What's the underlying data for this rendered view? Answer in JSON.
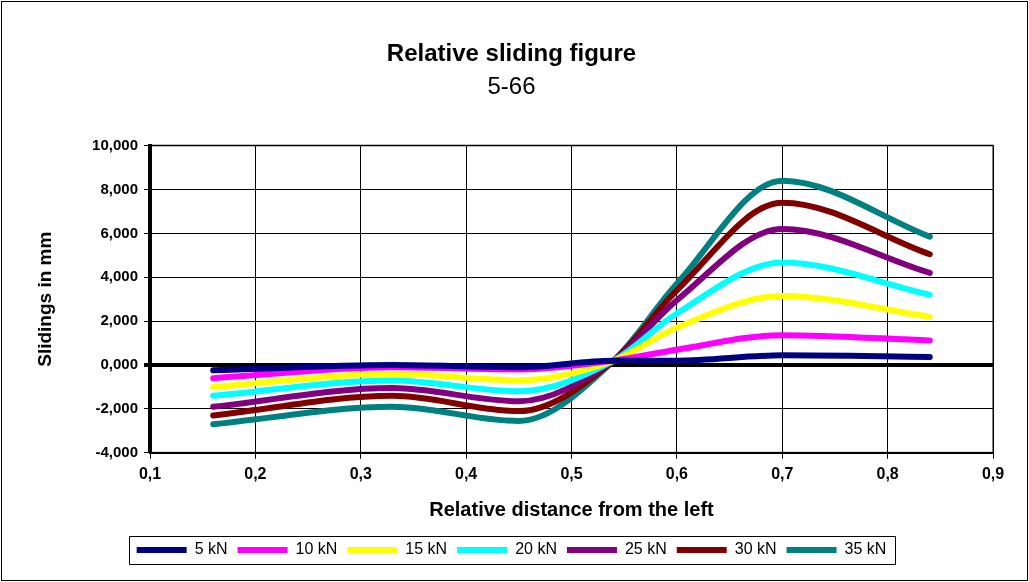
{
  "chart_data": {
    "type": "line",
    "title": "Relative sliding figure",
    "subtitle": "5-66",
    "xlabel": "Relative distance from the left",
    "ylabel": "Slidings in mm",
    "x": [
      0.16,
      0.33,
      0.45,
      0.54,
      0.6,
      0.7,
      0.84
    ],
    "series": [
      {
        "name": "5 kN",
        "color": "#000080",
        "values": [
          -0.24,
          0.0,
          -0.1,
          0.2,
          0.2,
          0.44,
          0.37
        ]
      },
      {
        "name": "10 kN",
        "color": "#ff00ff",
        "values": [
          -0.6,
          -0.1,
          -0.2,
          0.2,
          0.7,
          1.36,
          1.12
        ]
      },
      {
        "name": "15 kN",
        "color": "#ffff00",
        "values": [
          -1.0,
          -0.4,
          -0.7,
          0.2,
          1.7,
          3.15,
          2.2
        ]
      },
      {
        "name": "20 kN",
        "color": "#00ffff",
        "values": [
          -1.4,
          -0.7,
          -1.2,
          0.2,
          2.35,
          4.67,
          3.2
        ]
      },
      {
        "name": "25 kN",
        "color": "#800080",
        "values": [
          -1.9,
          -1.05,
          -1.65,
          0.2,
          2.95,
          6.2,
          4.2
        ]
      },
      {
        "name": "30 kN",
        "color": "#800000",
        "values": [
          -2.3,
          -1.4,
          -2.1,
          0.2,
          3.4,
          7.4,
          5.05
        ]
      },
      {
        "name": "35 kN",
        "color": "#008080",
        "values": [
          -2.7,
          -1.9,
          -2.55,
          0.2,
          3.7,
          8.4,
          5.85
        ]
      }
    ],
    "xlim": [
      0.1,
      0.9
    ],
    "xticks": [
      {
        "value": 0.1,
        "label": "0,1"
      },
      {
        "value": 0.2,
        "label": "0,2"
      },
      {
        "value": 0.3,
        "label": "0,3"
      },
      {
        "value": 0.4,
        "label": "0,4"
      },
      {
        "value": 0.5,
        "label": "0,5"
      },
      {
        "value": 0.6,
        "label": "0,6"
      },
      {
        "value": 0.7,
        "label": "0,7"
      },
      {
        "value": 0.8,
        "label": "0,8"
      },
      {
        "value": 0.9,
        "label": "0,9"
      }
    ],
    "ylim": [
      -4,
      10
    ],
    "yticks": [
      {
        "value": -4,
        "label": "-4,000"
      },
      {
        "value": -2,
        "label": "-2,000"
      },
      {
        "value": 0,
        "label": "0,000"
      },
      {
        "value": 2,
        "label": "2,000"
      },
      {
        "value": 4,
        "label": "4,000"
      },
      {
        "value": 6,
        "label": "6,000"
      },
      {
        "value": 8,
        "label": "8,000"
      },
      {
        "value": 10,
        "label": "10,000"
      }
    ],
    "grid": true,
    "legend": "bottom",
    "marker": "none",
    "line_style": "solid"
  }
}
